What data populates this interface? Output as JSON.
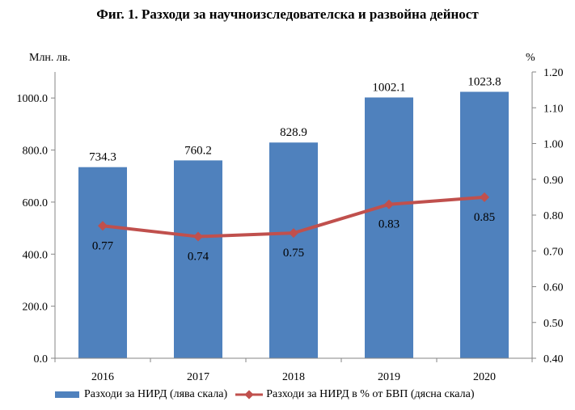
{
  "chart_data": {
    "type": "bar",
    "title": "Фиг. 1. Разходи за научноизследователска и развойна дейност",
    "ylabel_left": "Млн. лв.",
    "ylabel_right": "%",
    "categories": [
      "2016",
      "2017",
      "2018",
      "2019",
      "2020"
    ],
    "series": [
      {
        "name": "Разходи за НИРД (лява скала)",
        "type": "bar",
        "axis": "left",
        "color": "#4f81bd",
        "values": [
          734.3,
          760.2,
          828.9,
          1002.1,
          1023.8
        ],
        "labels": [
          "734.3",
          "760.2",
          "828.9",
          "1002.1",
          "1023.8"
        ]
      },
      {
        "name": "Разходи за НИРД в % от БВП (дясна скала)",
        "type": "line",
        "axis": "right",
        "color": "#c0504d",
        "values": [
          0.77,
          0.74,
          0.75,
          0.83,
          0.85
        ],
        "labels": [
          "0.77",
          "0.74",
          "0.75",
          "0.83",
          "0.85"
        ]
      }
    ],
    "ylim_left": [
      0,
      1100
    ],
    "ylim_right": [
      0.4,
      1.2
    ],
    "yticks_left": [
      "0.0",
      "200.0",
      "400.0",
      "600.0",
      "800.0",
      "1000.0"
    ],
    "yticks_right": [
      "0.40",
      "0.50",
      "0.60",
      "0.70",
      "0.80",
      "0.90",
      "1.00",
      "1.10",
      "1.20"
    ],
    "grid": false,
    "legend_position": "bottom"
  }
}
